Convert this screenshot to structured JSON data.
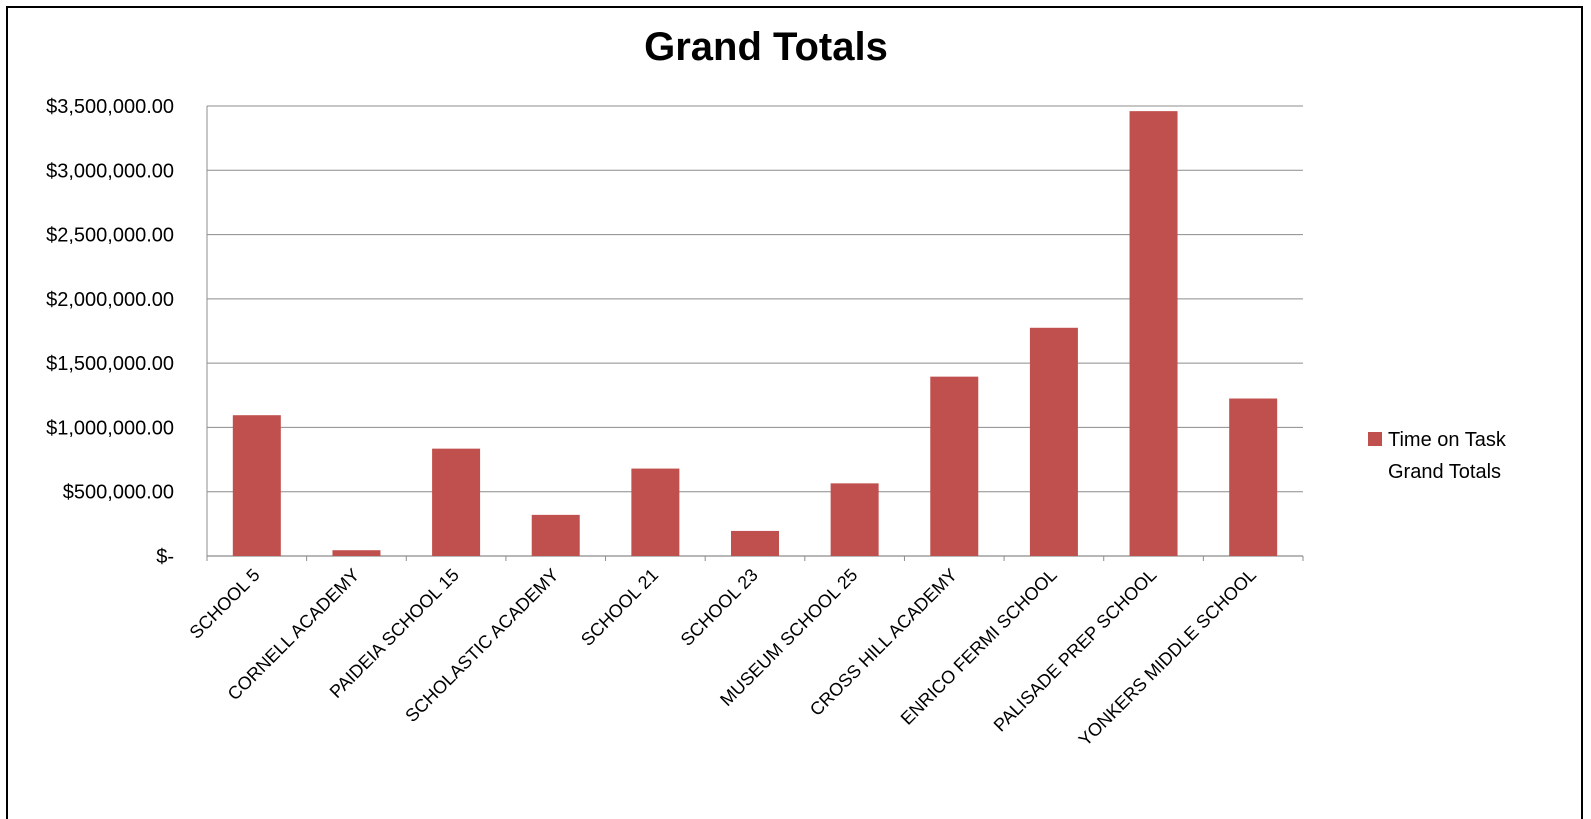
{
  "chart_data": {
    "type": "bar",
    "title": "Grand Totals",
    "xlabel": "",
    "ylabel": "",
    "categories": [
      "SCHOOL 5",
      "CORNELL ACADEMY",
      "PAIDEIA SCHOOL 15",
      "SCHOLASTIC ACADEMY",
      "SCHOOL 21",
      "SCHOOL 23",
      "MUSEUM SCHOOL 25",
      "CROSS HILL ACADEMY",
      "ENRICO FERMI SCHOOL",
      "PALISADE PREP SCHOOL",
      "YONKERS MIDDLE SCHOOL"
    ],
    "series": [
      {
        "name": "Time on Task Grand Totals",
        "name_lines": [
          "Time on Task",
          "Grand Totals"
        ],
        "color": "#c0504d",
        "values": [
          1095000,
          45000,
          835000,
          320000,
          680000,
          195000,
          565000,
          1395000,
          1775000,
          3460000,
          1225000
        ]
      }
    ],
    "ylim": [
      0,
      3500000
    ],
    "yticks": [
      {
        "value": 0,
        "label": "$-"
      },
      {
        "value": 500000,
        "label": "$500,000.00"
      },
      {
        "value": 1000000,
        "label": "$1,000,000.00"
      },
      {
        "value": 1500000,
        "label": "$1,500,000.00"
      },
      {
        "value": 2000000,
        "label": "$2,000,000.00"
      },
      {
        "value": 2500000,
        "label": "$2,500,000.00"
      },
      {
        "value": 3000000,
        "label": "$3,000,000.00"
      },
      {
        "value": 3500000,
        "label": "$3,500,000.00"
      }
    ],
    "grid": true,
    "legend_position": "right"
  }
}
